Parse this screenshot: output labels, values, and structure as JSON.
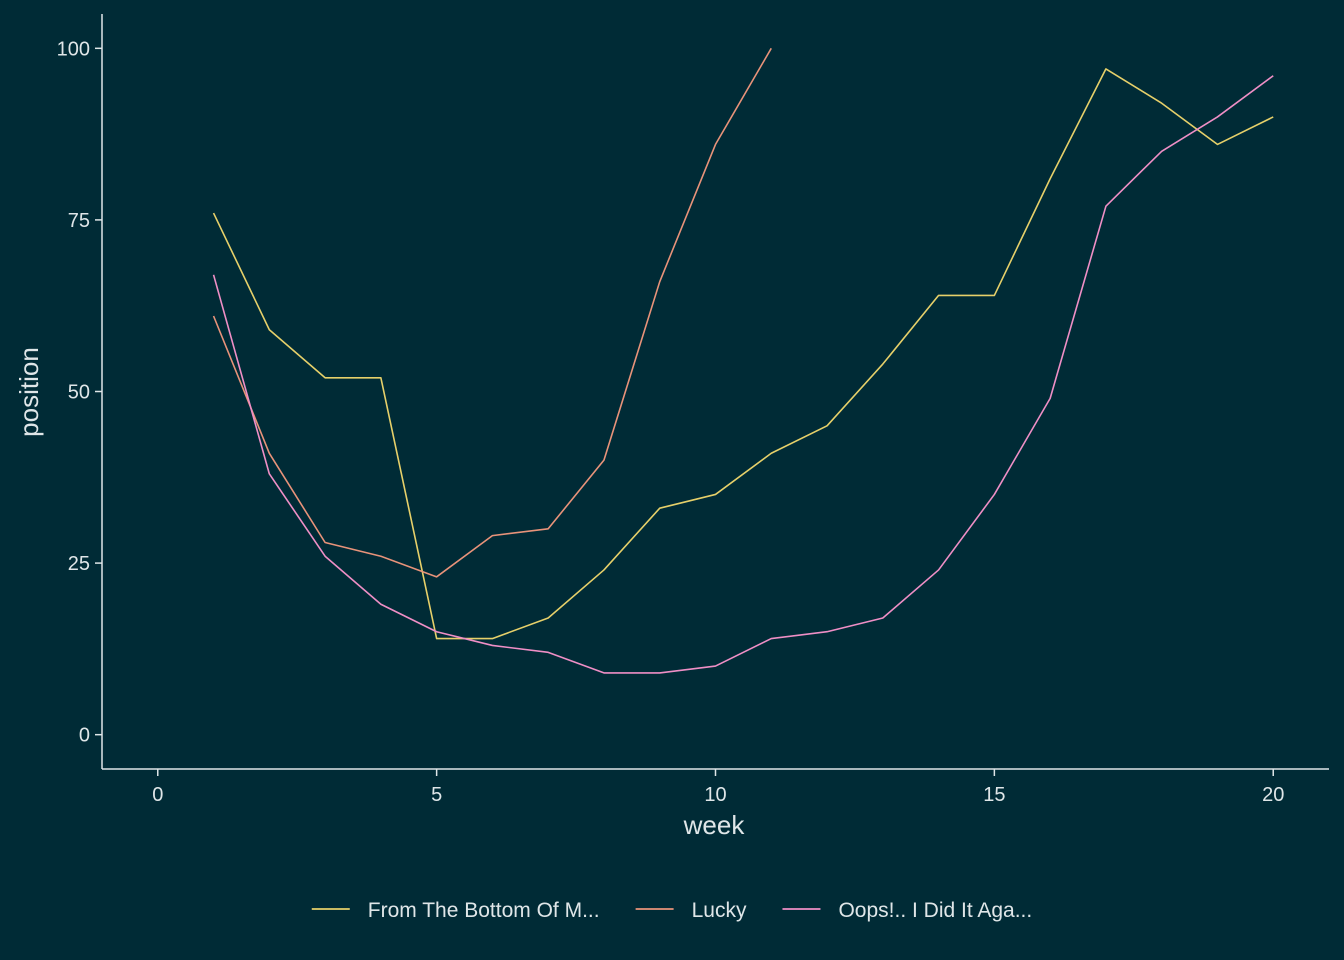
{
  "chart_data": {
    "type": "line",
    "title": "",
    "xlabel": "week",
    "ylabel": "position",
    "xlim": [
      -1,
      21
    ],
    "ylim": [
      -5,
      105
    ],
    "x_ticks": [
      0,
      5,
      10,
      15,
      20
    ],
    "y_ticks": [
      0,
      25,
      50,
      75,
      100
    ],
    "x_tick_labels": [
      "0",
      "5",
      "10",
      "15",
      "20"
    ],
    "y_tick_labels": [
      "0",
      "25",
      "50",
      "75",
      "100"
    ],
    "grid": false,
    "legend_position": "bottom",
    "series": [
      {
        "name": "From The Bottom Of M...",
        "color": "#e6d06a",
        "x": [
          1,
          2,
          3,
          4,
          5,
          6,
          7,
          8,
          9,
          10,
          11,
          12,
          13,
          14,
          15,
          16,
          17,
          18,
          19,
          20
        ],
        "values": [
          76,
          59,
          52,
          52,
          14,
          14,
          17,
          24,
          33,
          35,
          41,
          45,
          54,
          64,
          64,
          81,
          97,
          92,
          86,
          90
        ]
      },
      {
        "name": "Lucky",
        "color": "#e8937a",
        "x": [
          1,
          2,
          3,
          4,
          5,
          6,
          7,
          8,
          9,
          10,
          11
        ],
        "values": [
          61,
          41,
          28,
          26,
          23,
          29,
          30,
          40,
          66,
          86,
          100
        ]
      },
      {
        "name": "Oops!.. I Did It Aga...",
        "color": "#ef8fc6",
        "x": [
          1,
          2,
          3,
          4,
          5,
          6,
          7,
          8,
          9,
          10,
          11,
          12,
          13,
          14,
          15,
          16,
          17,
          18,
          19,
          20
        ],
        "values": [
          67,
          38,
          26,
          19,
          15,
          13,
          12,
          9,
          9,
          10,
          14,
          15,
          17,
          24,
          35,
          49,
          77,
          85,
          90,
          96
        ]
      }
    ]
  },
  "colors": {
    "background": "#002b36",
    "axis": "#dfe6e8",
    "text": "#dfe6e8"
  }
}
